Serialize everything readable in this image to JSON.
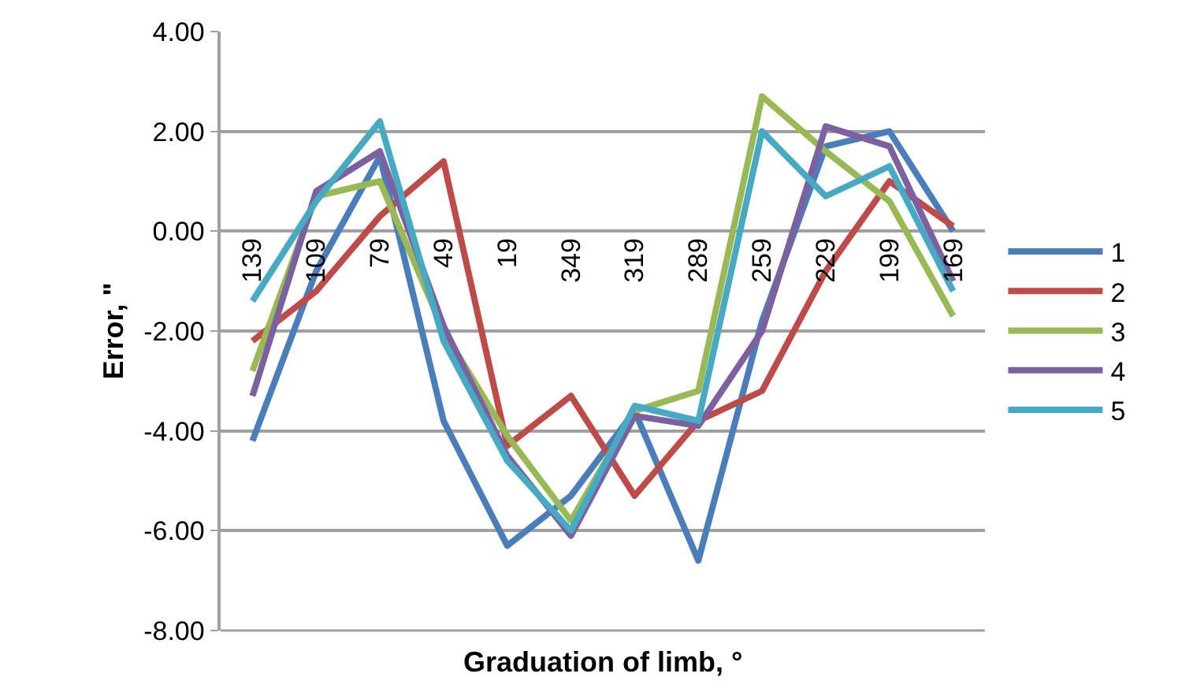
{
  "chart_data": {
    "type": "line",
    "xlabel": "Graduation of limb, °",
    "ylabel": "Error, \"",
    "categories": [
      "139",
      "109",
      "79",
      "49",
      "19",
      "349",
      "319",
      "289",
      "259",
      "229",
      "199",
      "169"
    ],
    "series": [
      {
        "name": "1",
        "color": "#4a7ebb",
        "values": [
          -4.2,
          -0.8,
          1.5,
          -3.8,
          -6.3,
          -5.3,
          -3.6,
          -6.6,
          -1.8,
          1.7,
          2.0,
          0.0
        ]
      },
      {
        "name": "2",
        "color": "#be4b48",
        "values": [
          -2.2,
          -1.2,
          0.3,
          1.4,
          -4.3,
          -3.3,
          -5.3,
          -3.8,
          -3.2,
          -0.8,
          1.0,
          0.1
        ]
      },
      {
        "name": "3",
        "color": "#98b954",
        "values": [
          -2.8,
          0.7,
          1.0,
          -2.0,
          -4.1,
          -5.8,
          -3.6,
          -3.2,
          2.7,
          1.6,
          0.6,
          -1.7
        ]
      },
      {
        "name": "4",
        "color": "#7d60a0",
        "values": [
          -3.3,
          0.8,
          1.6,
          -1.9,
          -4.5,
          -6.1,
          -3.7,
          -3.9,
          -2.0,
          2.1,
          1.7,
          -1.0
        ]
      },
      {
        "name": "5",
        "color": "#46aac5",
        "values": [
          -1.4,
          0.6,
          2.2,
          -2.2,
          -4.6,
          -6.0,
          -3.5,
          -3.8,
          2.0,
          0.7,
          1.3,
          -1.2
        ]
      }
    ],
    "ylim": [
      -8,
      4
    ],
    "yticks": [
      {
        "value": -8,
        "label": "-8.00"
      },
      {
        "value": -6,
        "label": "-6.00"
      },
      {
        "value": -4,
        "label": "-4.00"
      },
      {
        "value": -2,
        "label": "-2.00"
      },
      {
        "value": 0,
        "label": "0.00"
      },
      {
        "value": 2,
        "label": "2.00"
      },
      {
        "value": 4,
        "label": "4.00"
      }
    ],
    "grid": "y",
    "legend": "right",
    "marker": "none",
    "line_style": "solid"
  }
}
